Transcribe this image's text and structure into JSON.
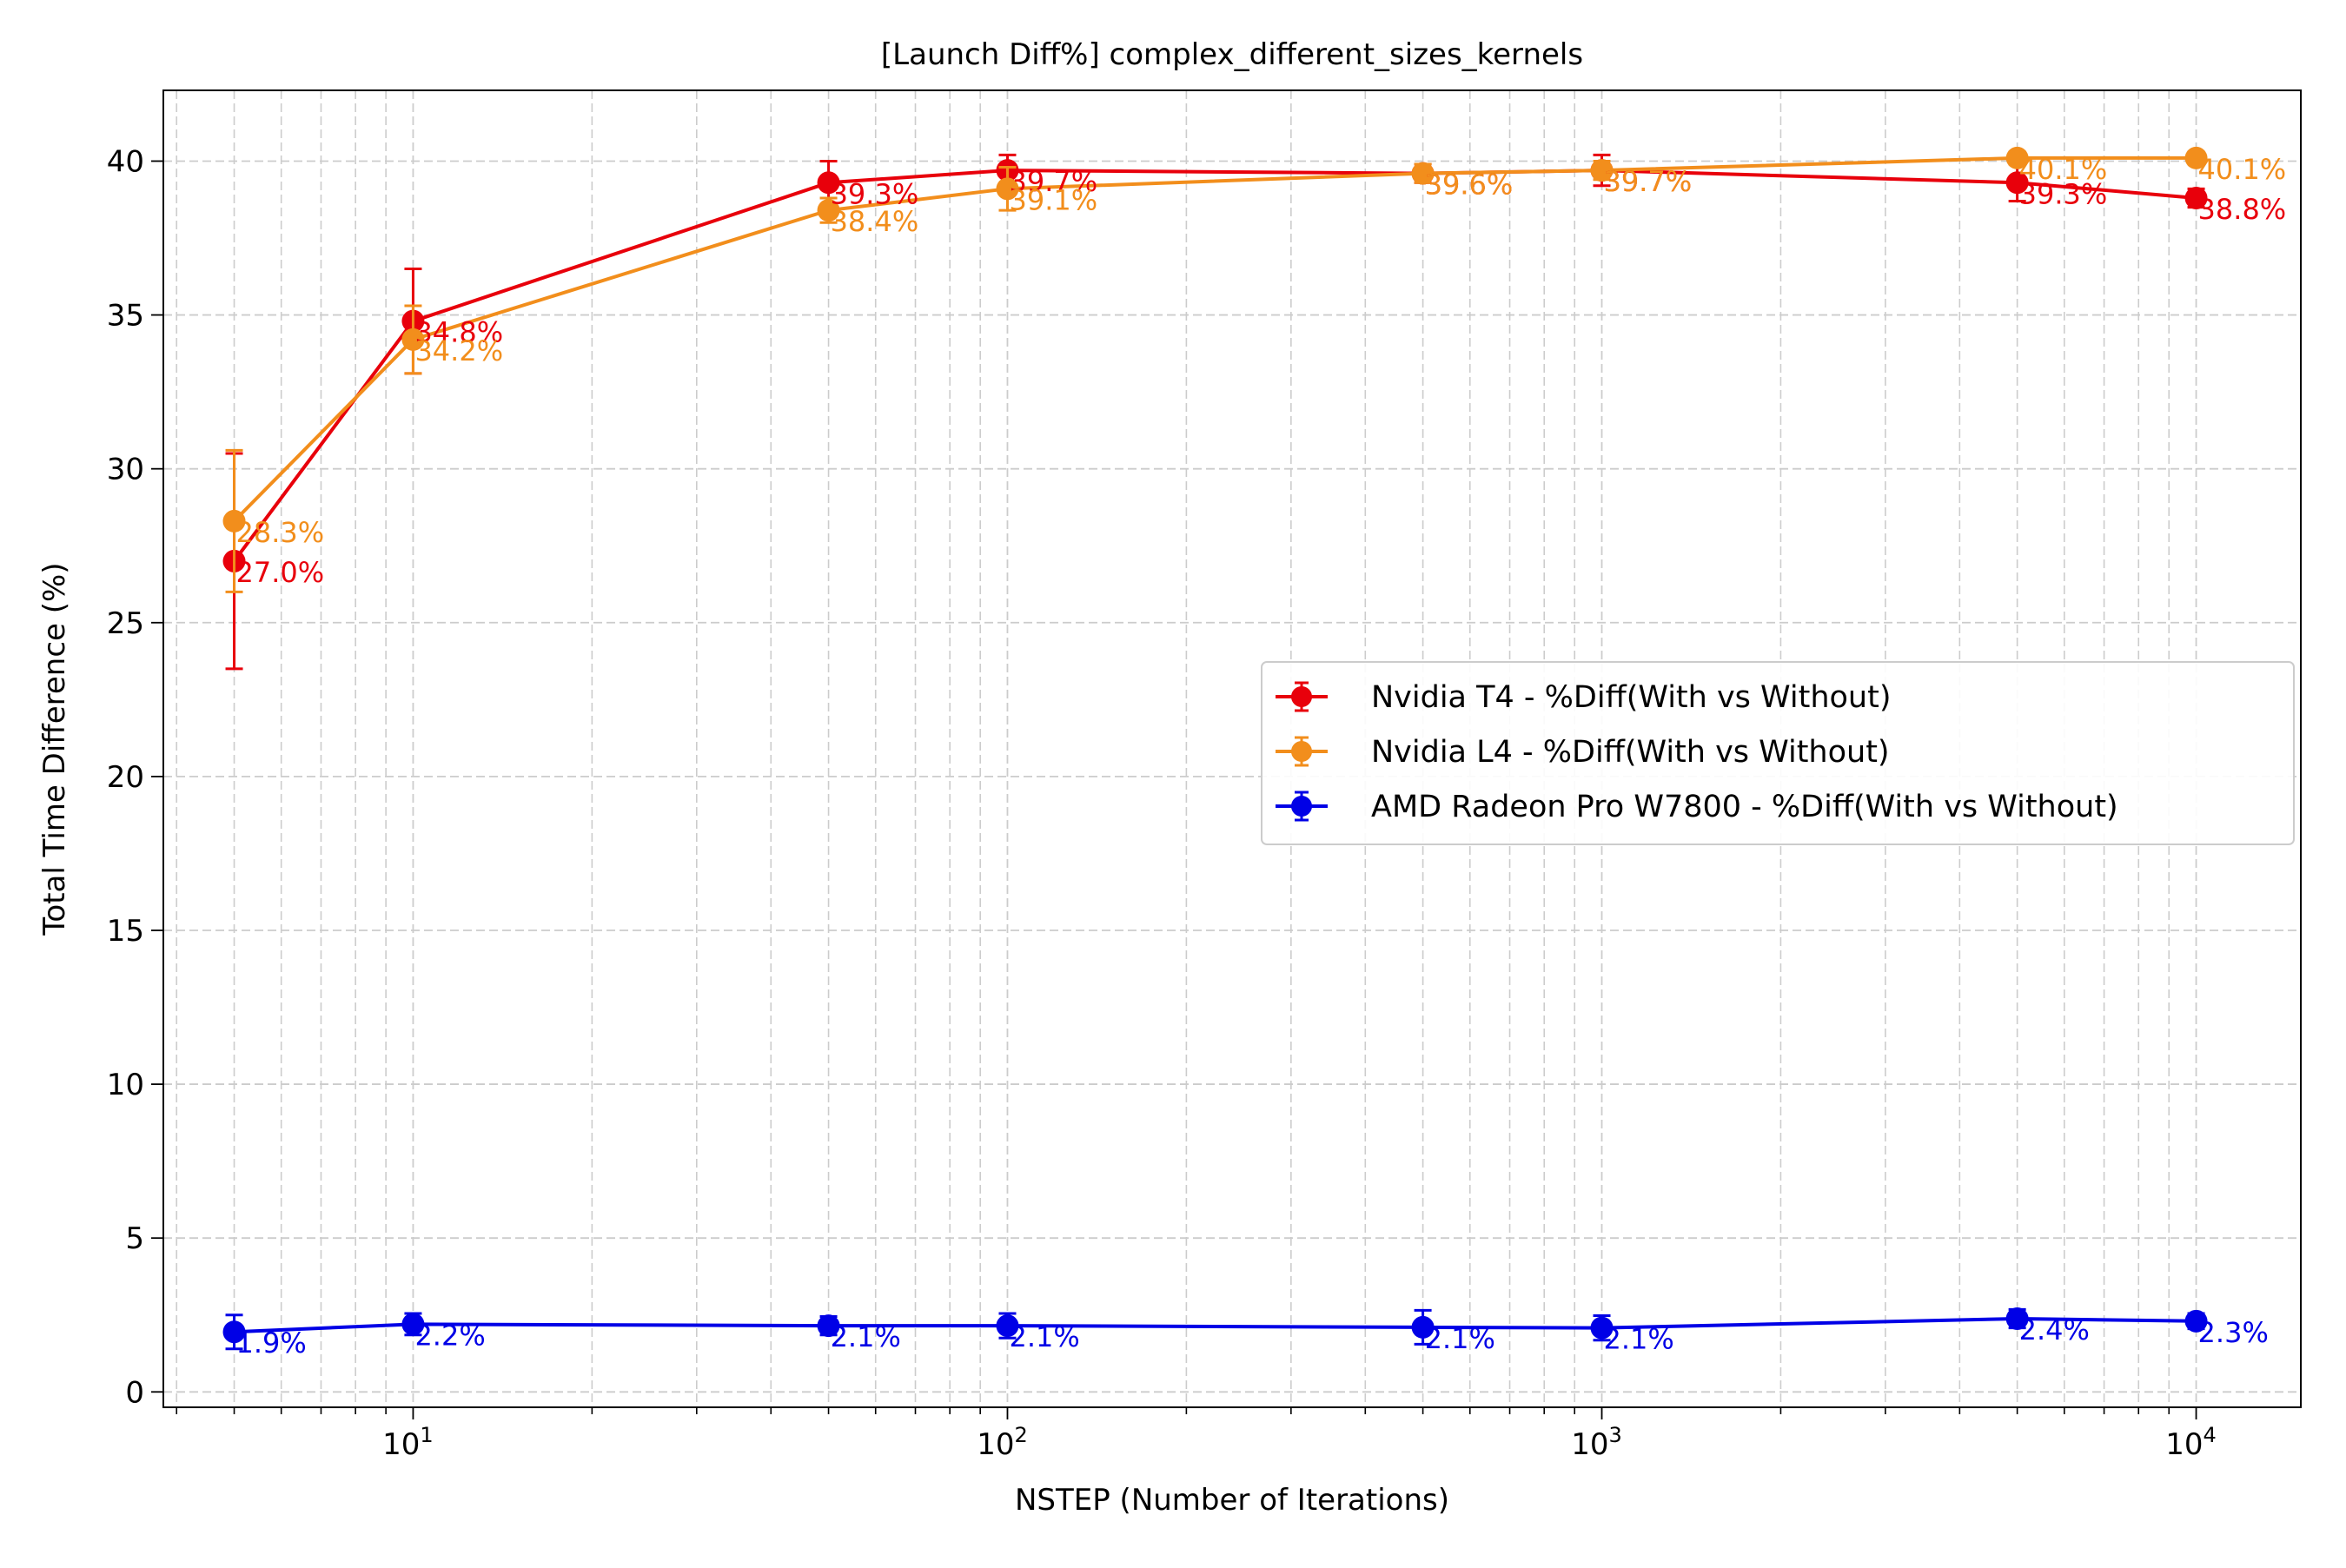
{
  "chart_data": {
    "type": "line",
    "title": "[Launch Diff%] complex_different_sizes_kernels",
    "xlabel": "NSTEP (Number of Iterations)",
    "ylabel": "Total Time Difference (%)",
    "x_scale": "log",
    "xlim": [
      3.8,
      15000
    ],
    "ylim": [
      -0.5,
      42.3
    ],
    "grid": true,
    "legend_position": "center-right",
    "x": [
      5,
      10,
      50,
      100,
      500,
      1000,
      5000,
      10000
    ],
    "x_ticks": [
      {
        "value": 10,
        "base": "10",
        "exp": "1"
      },
      {
        "value": 100,
        "base": "10",
        "exp": "2"
      },
      {
        "value": 1000,
        "base": "10",
        "exp": "3"
      },
      {
        "value": 10000,
        "base": "10",
        "exp": "4"
      }
    ],
    "y_ticks": [
      {
        "value": 0,
        "label": "0"
      },
      {
        "value": 5,
        "label": "5"
      },
      {
        "value": 10,
        "label": "10"
      },
      {
        "value": 15,
        "label": "15"
      },
      {
        "value": 20,
        "label": "20"
      },
      {
        "value": 25,
        "label": "25"
      },
      {
        "value": 30,
        "label": "30"
      },
      {
        "value": 35,
        "label": "35"
      },
      {
        "value": 40,
        "label": "40"
      }
    ],
    "series": [
      {
        "name": "Nvidia T4 - %Diff(With vs Without)",
        "color": "#e8000b",
        "values": [
          27.0,
          34.8,
          39.3,
          39.7,
          39.6,
          39.7,
          39.3,
          38.8
        ],
        "errors": [
          3.5,
          1.7,
          0.7,
          0.5,
          0.3,
          0.5,
          0.6,
          0.3
        ],
        "labels": [
          "27.0%",
          "34.8%",
          "39.3%",
          "39.7%",
          "39.6%",
          "39.7%",
          "39.3%",
          "38.8%"
        ]
      },
      {
        "name": "Nvidia L4 - %Diff(With vs Without)",
        "color": "#f28e1c",
        "values": [
          28.3,
          34.2,
          38.4,
          39.1,
          39.6,
          39.7,
          40.1,
          40.1
        ],
        "errors": [
          2.3,
          1.1,
          0.4,
          0.7,
          0.3,
          0.3,
          0.2,
          0.2
        ],
        "labels": [
          "28.3%",
          "34.2%",
          "38.4%",
          "39.1%",
          "39.6%",
          "39.7%",
          "40.1%",
          "40.1%"
        ]
      },
      {
        "name": "AMD Radeon Pro W7800 - %Diff(With vs Without)",
        "color": "#0000e6",
        "values": [
          1.95,
          2.2,
          2.15,
          2.15,
          2.1,
          2.08,
          2.38,
          2.3
        ],
        "errors": [
          0.55,
          0.35,
          0.3,
          0.4,
          0.55,
          0.4,
          0.3,
          0.25
        ],
        "labels": [
          "1.9%",
          "2.2%",
          "2.1%",
          "2.1%",
          "2.1%",
          "2.1%",
          "2.4%",
          "2.3%"
        ]
      }
    ]
  }
}
